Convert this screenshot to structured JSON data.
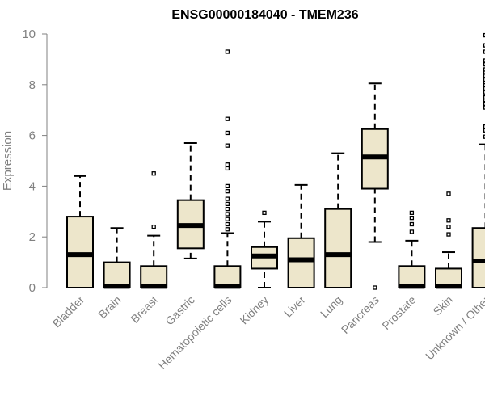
{
  "chart_data": {
    "type": "box",
    "title": "ENSG00000184040 - TMEM236",
    "ylabel": "Expression",
    "xlabel": "",
    "ylim": [
      0,
      10
    ],
    "yticks": [
      0,
      2,
      4,
      6,
      8,
      10
    ],
    "colors": {
      "box_fill": "#ede6cb",
      "stroke": "#000000",
      "axis": "#808080"
    },
    "categories": [
      "Bladder",
      "Brain",
      "Breast",
      "Gastric",
      "Hematopoietic cells",
      "Kidney",
      "Liver",
      "Lung",
      "Pancreas",
      "Prostate",
      "Skin",
      "Unknown / Other"
    ],
    "boxes": [
      {
        "name": "Bladder",
        "q1": 0.0,
        "median": 1.3,
        "q3": 2.8,
        "whisker_low": 0.0,
        "whisker_high": 4.4,
        "outliers": []
      },
      {
        "name": "Brain",
        "q1": 0.0,
        "median": 0.05,
        "q3": 1.0,
        "whisker_low": 0.0,
        "whisker_high": 2.35,
        "outliers": []
      },
      {
        "name": "Breast",
        "q1": 0.0,
        "median": 0.05,
        "q3": 0.85,
        "whisker_low": 0.0,
        "whisker_high": 2.05,
        "outliers": [
          2.4,
          4.5
        ]
      },
      {
        "name": "Gastric",
        "q1": 1.55,
        "median": 2.45,
        "q3": 3.45,
        "whisker_low": 1.15,
        "whisker_high": 5.7,
        "outliers": []
      },
      {
        "name": "Hematopoietic cells",
        "q1": 0.0,
        "median": 0.05,
        "q3": 0.85,
        "whisker_low": 0.0,
        "whisker_high": 2.15,
        "outliers": [
          2.3,
          2.5,
          2.7,
          2.9,
          3.1,
          3.3,
          3.5,
          3.8,
          4.0,
          4.7,
          4.85,
          5.6,
          6.1,
          6.65,
          9.3
        ]
      },
      {
        "name": "Kidney",
        "q1": 0.75,
        "median": 1.25,
        "q3": 1.6,
        "whisker_low": 0.0,
        "whisker_high": 2.6,
        "outliers": [
          2.95
        ]
      },
      {
        "name": "Liver",
        "q1": 0.0,
        "median": 1.1,
        "q3": 1.95,
        "whisker_low": 0.0,
        "whisker_high": 4.05,
        "outliers": []
      },
      {
        "name": "Lung",
        "q1": 0.0,
        "median": 1.3,
        "q3": 3.1,
        "whisker_low": 0.0,
        "whisker_high": 5.3,
        "outliers": []
      },
      {
        "name": "Pancreas",
        "q1": 3.9,
        "median": 5.15,
        "q3": 6.25,
        "whisker_low": 1.8,
        "whisker_high": 8.05,
        "outliers": [
          0.0
        ]
      },
      {
        "name": "Prostate",
        "q1": 0.0,
        "median": 0.05,
        "q3": 0.85,
        "whisker_low": 0.0,
        "whisker_high": 1.85,
        "outliers": [
          2.2,
          2.5,
          2.75,
          2.95
        ]
      },
      {
        "name": "Skin",
        "q1": 0.0,
        "median": 0.05,
        "q3": 0.75,
        "whisker_low": 0.0,
        "whisker_high": 1.4,
        "outliers": [
          2.1,
          2.4,
          2.65,
          3.7
        ]
      },
      {
        "name": "Unknown / Other",
        "q1": 0.0,
        "median": 1.05,
        "q3": 2.35,
        "whisker_low": 0.0,
        "whisker_high": 5.65,
        "outliers": [
          5.95,
          6.2,
          6.35,
          7.1,
          7.25,
          7.4,
          7.5,
          7.7,
          7.85,
          8.0,
          8.1,
          8.2,
          8.35,
          8.5,
          8.6,
          8.8,
          8.95,
          9.3,
          9.55,
          9.95
        ]
      }
    ]
  }
}
